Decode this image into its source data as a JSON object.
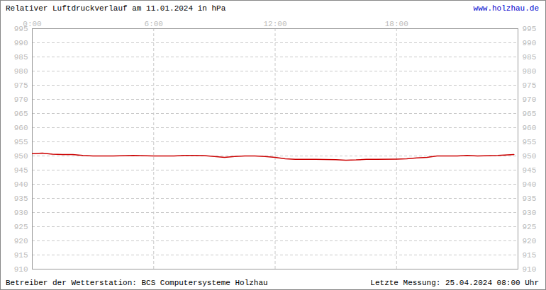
{
  "chart_data": {
    "type": "line",
    "title": "Relativer Luftdruckverlauf am 11.01.2024 in hPa",
    "subtitle": "www.holzhau.de",
    "annotations": [
      "Betreiber der Wetterstation: BCS Computersysteme Holzhau",
      "Letzte Messung: 25.04.2024 08:00 Uhr"
    ],
    "color": "#cc0000",
    "x": [
      0,
      0.5,
      1,
      1.5,
      2,
      2.5,
      3,
      4,
      5,
      6,
      7,
      7.5,
      8,
      8.5,
      9,
      9.5,
      10,
      10.5,
      11,
      11.5,
      12,
      12.5,
      13,
      14,
      15,
      15.5,
      16,
      16.5,
      17,
      18,
      18.5,
      19,
      19.5,
      20,
      21,
      21.5,
      22,
      23,
      23.8
    ],
    "values": [
      950.8,
      951,
      950.6,
      950.5,
      950.5,
      950.2,
      950,
      950,
      950.2,
      950,
      950,
      950.2,
      950.2,
      950.1,
      949.8,
      949.5,
      949.8,
      950,
      950,
      949.8,
      949.5,
      949,
      948.8,
      948.8,
      948.7,
      948.5,
      948.6,
      948.8,
      948.8,
      948.9,
      949,
      949.3,
      949.5,
      950,
      950,
      950.2,
      950,
      950.2,
      950.5
    ],
    "xlim": [
      0,
      24
    ],
    "xticks": [
      {
        "value": 0,
        "label": "0:00"
      },
      {
        "value": 6,
        "label": "6:00"
      },
      {
        "value": 12,
        "label": "12:00"
      },
      {
        "value": 18,
        "label": "18:00"
      }
    ],
    "ylim": [
      910,
      995
    ],
    "yticks": [
      910,
      915,
      920,
      925,
      930,
      935,
      940,
      945,
      950,
      955,
      960,
      965,
      970,
      975,
      980,
      985,
      990,
      995
    ],
    "grid": true
  }
}
